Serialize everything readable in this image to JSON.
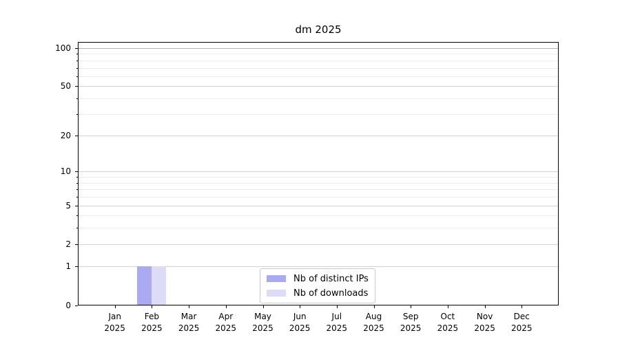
{
  "chart_data": {
    "type": "bar",
    "title": "dm 2025",
    "xlabel": "",
    "ylabel": "",
    "y_scale": "log10(1+v)",
    "ylim": [
      0,
      112
    ],
    "grid": true,
    "legend_position": "lower center",
    "y_major_ticks": [
      0,
      1,
      2,
      5,
      10,
      20,
      50,
      100
    ],
    "y_minor_gridlines": [
      3,
      4,
      6,
      7,
      8,
      9,
      30,
      40,
      60,
      70,
      80,
      90
    ],
    "categories": [
      {
        "month": "Jan",
        "year": "2025"
      },
      {
        "month": "Feb",
        "year": "2025"
      },
      {
        "month": "Mar",
        "year": "2025"
      },
      {
        "month": "Apr",
        "year": "2025"
      },
      {
        "month": "May",
        "year": "2025"
      },
      {
        "month": "Jun",
        "year": "2025"
      },
      {
        "month": "Jul",
        "year": "2025"
      },
      {
        "month": "Aug",
        "year": "2025"
      },
      {
        "month": "Sep",
        "year": "2025"
      },
      {
        "month": "Oct",
        "year": "2025"
      },
      {
        "month": "Nov",
        "year": "2025"
      },
      {
        "month": "Dec",
        "year": "2025"
      }
    ],
    "series": [
      {
        "name": "Nb of distinct IPs",
        "color": "#aaaaf2",
        "values": [
          0,
          1,
          0,
          0,
          0,
          0,
          0,
          0,
          0,
          0,
          0,
          0
        ]
      },
      {
        "name": "Nb of downloads",
        "color": "#dcdcf8",
        "values": [
          0,
          1,
          0,
          0,
          0,
          0,
          0,
          0,
          0,
          0,
          0,
          0
        ]
      }
    ]
  },
  "colors": {
    "major_grid": "#d2d2d2",
    "top_major_grid": "#b5b5b5",
    "minor_grid": "#ececec",
    "spine": "#000000",
    "background": "#ffffff"
  }
}
